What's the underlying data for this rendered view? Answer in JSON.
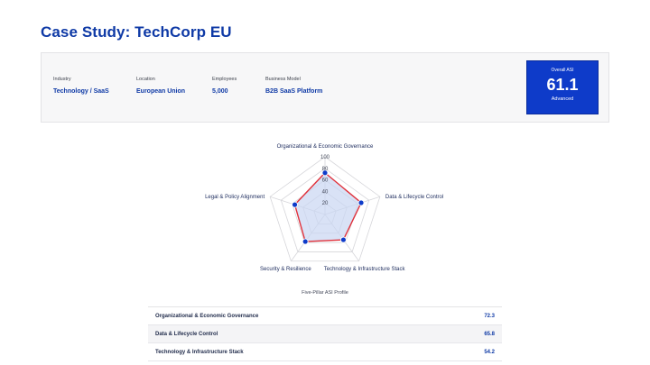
{
  "page": {
    "title": "Case Study: TechCorp EU"
  },
  "profile": {
    "industry_label": "Industry",
    "industry": "Technology / SaaS",
    "location_label": "Location",
    "location": "European Union",
    "employees_label": "Employees",
    "employees": "5,000",
    "model_label": "Business Model",
    "model": "B2B SaaS Platform"
  },
  "asi": {
    "label": "Overall ASI",
    "score": "61.1",
    "level": "Advanced"
  },
  "chart_data": {
    "type": "radar",
    "title": "Five-Pillar ASI Profile",
    "axes": [
      "Organizational & Economic Governance",
      "Data & Lifecycle Control",
      "Technology & Infrastructure Stack",
      "Security & Resilience",
      "Legal & Policy Alignment"
    ],
    "values": [
      72.3,
      65.8,
      54.2,
      58.0,
      55.0
    ],
    "ticks": [
      "20",
      "40",
      "60",
      "80",
      "100"
    ],
    "range": [
      0,
      100
    ],
    "colors": {
      "line": "#e0323c",
      "fill": "#c9d6f2",
      "point": "#0e3bc9",
      "grid": "#d6d6da"
    }
  },
  "table": {
    "rows": [
      {
        "label": "Organizational & Economic Governance",
        "value": "72.3"
      },
      {
        "label": "Data & Lifecycle Control",
        "value": "65.8"
      },
      {
        "label": "Technology & Infrastructure Stack",
        "value": "54.2"
      }
    ]
  }
}
